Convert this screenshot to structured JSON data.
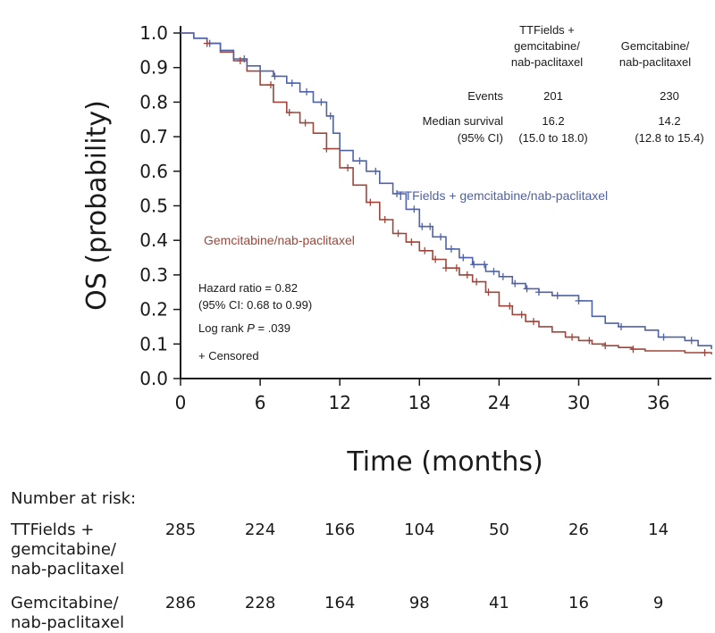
{
  "chart_data": {
    "type": "line",
    "step": true,
    "xlabel": "Time (months)",
    "ylabel": "OS (probability)",
    "xlim": [
      0,
      40
    ],
    "ylim": [
      0,
      1.0
    ],
    "xticks": [
      0,
      6,
      12,
      18,
      24,
      30,
      36
    ],
    "yticks": [
      "0.0",
      "0.1",
      "0.2",
      "0.3",
      "0.4",
      "0.5",
      "0.6",
      "0.7",
      "0.8",
      "0.9",
      "1.0"
    ],
    "grid": false,
    "series": [
      {
        "name": "TTFields + gemcitabine/nab-paclitaxel",
        "color": "#4f62a8",
        "x": [
          0,
          1,
          2,
          3,
          4,
          5,
          6,
          7,
          8,
          9,
          10,
          11,
          11.5,
          12,
          13,
          14,
          15,
          16,
          17,
          18,
          19,
          20,
          21,
          22,
          23,
          24,
          25,
          26,
          27,
          28,
          29,
          30,
          31,
          32,
          33,
          34,
          35,
          36,
          37,
          38,
          39,
          40
        ],
        "y": [
          1.0,
          0.985,
          0.97,
          0.95,
          0.925,
          0.905,
          0.89,
          0.875,
          0.855,
          0.83,
          0.8,
          0.76,
          0.71,
          0.66,
          0.63,
          0.6,
          0.565,
          0.535,
          0.49,
          0.44,
          0.41,
          0.375,
          0.35,
          0.33,
          0.31,
          0.295,
          0.275,
          0.26,
          0.25,
          0.24,
          0.24,
          0.225,
          0.18,
          0.16,
          0.15,
          0.15,
          0.14,
          0.12,
          0.12,
          0.11,
          0.095,
          0.085
        ]
      },
      {
        "name": "Gemcitabine/nab-paclitaxel",
        "color": "#a0453a",
        "x": [
          0,
          1,
          2,
          3,
          4,
          5,
          6,
          7,
          8,
          9,
          10,
          11,
          12,
          13,
          14,
          15,
          16,
          17,
          18,
          19,
          20,
          21,
          22,
          23,
          24,
          25,
          26,
          27,
          28,
          29,
          30,
          31,
          32,
          33,
          34,
          35,
          36,
          37,
          38,
          39,
          40
        ],
        "y": [
          1.0,
          0.985,
          0.97,
          0.945,
          0.92,
          0.89,
          0.85,
          0.8,
          0.77,
          0.74,
          0.71,
          0.665,
          0.61,
          0.56,
          0.51,
          0.46,
          0.42,
          0.395,
          0.37,
          0.345,
          0.32,
          0.3,
          0.28,
          0.25,
          0.21,
          0.185,
          0.165,
          0.15,
          0.135,
          0.12,
          0.11,
          0.1,
          0.095,
          0.09,
          0.085,
          0.08,
          0.08,
          0.08,
          0.075,
          0.075,
          0.07
        ]
      }
    ],
    "censor_marks": [
      {
        "series": 0,
        "x": [
          2.2,
          4.8,
          7.1,
          8.4,
          9.5,
          10.6,
          11.3,
          13.5,
          14.7,
          16.3,
          17.6,
          18.2,
          18.8,
          19.6,
          20.4,
          21.3,
          22.1,
          22.9,
          23.6,
          24.3,
          25.2,
          26.1,
          27.0,
          28.4,
          30.0,
          33.2,
          36.4,
          38.5
        ]
      },
      {
        "series": 1,
        "x": [
          2.0,
          4.5,
          6.8,
          8.2,
          9.4,
          11.0,
          12.6,
          14.3,
          15.4,
          16.4,
          17.4,
          18.4,
          19.2,
          20.0,
          20.8,
          21.6,
          22.3,
          23.2,
          24.8,
          25.7,
          26.6,
          29.5,
          30.8,
          32.0,
          34.1,
          39.5
        ]
      }
    ]
  },
  "series_labels": {
    "ttfields": "TTFields + gemcitabine/nab-paclitaxel",
    "gem": "Gemcitabine/nab-paclitaxel"
  },
  "legend_table": {
    "col1_header": [
      "TTFields +",
      "gemcitabine/",
      "nab-paclitaxel"
    ],
    "col2_header": [
      "Gemcitabine/",
      "nab-paclitaxel"
    ],
    "events_label": "Events",
    "events": [
      "201",
      "230"
    ],
    "median_label": "Median survival",
    "ci_label": "(95% CI)",
    "median": [
      "16.2",
      "14.2"
    ],
    "ci": [
      "(15.0 to 18.0)",
      "(12.8 to 15.4)"
    ]
  },
  "annotations": {
    "hazard_ratio": "Hazard ratio = 0.82",
    "hazard_ci": "(95% CI: 0.68 to 0.99)",
    "log_rank_prefix": "Log rank ",
    "log_rank_p": "P",
    "log_rank_value": " = .039",
    "censored": "+ Censored"
  },
  "risk_table": {
    "title": "Number at risk:",
    "rows": [
      {
        "label": "TTFields +\ngemcitabine/\nnab-paclitaxel",
        "values": [
          "285",
          "224",
          "166",
          "104",
          "50",
          "26",
          "14"
        ]
      },
      {
        "label": "Gemcitabine/\nnab-paclitaxel",
        "values": [
          "286",
          "228",
          "164",
          "98",
          "41",
          "16",
          "9"
        ]
      }
    ]
  }
}
